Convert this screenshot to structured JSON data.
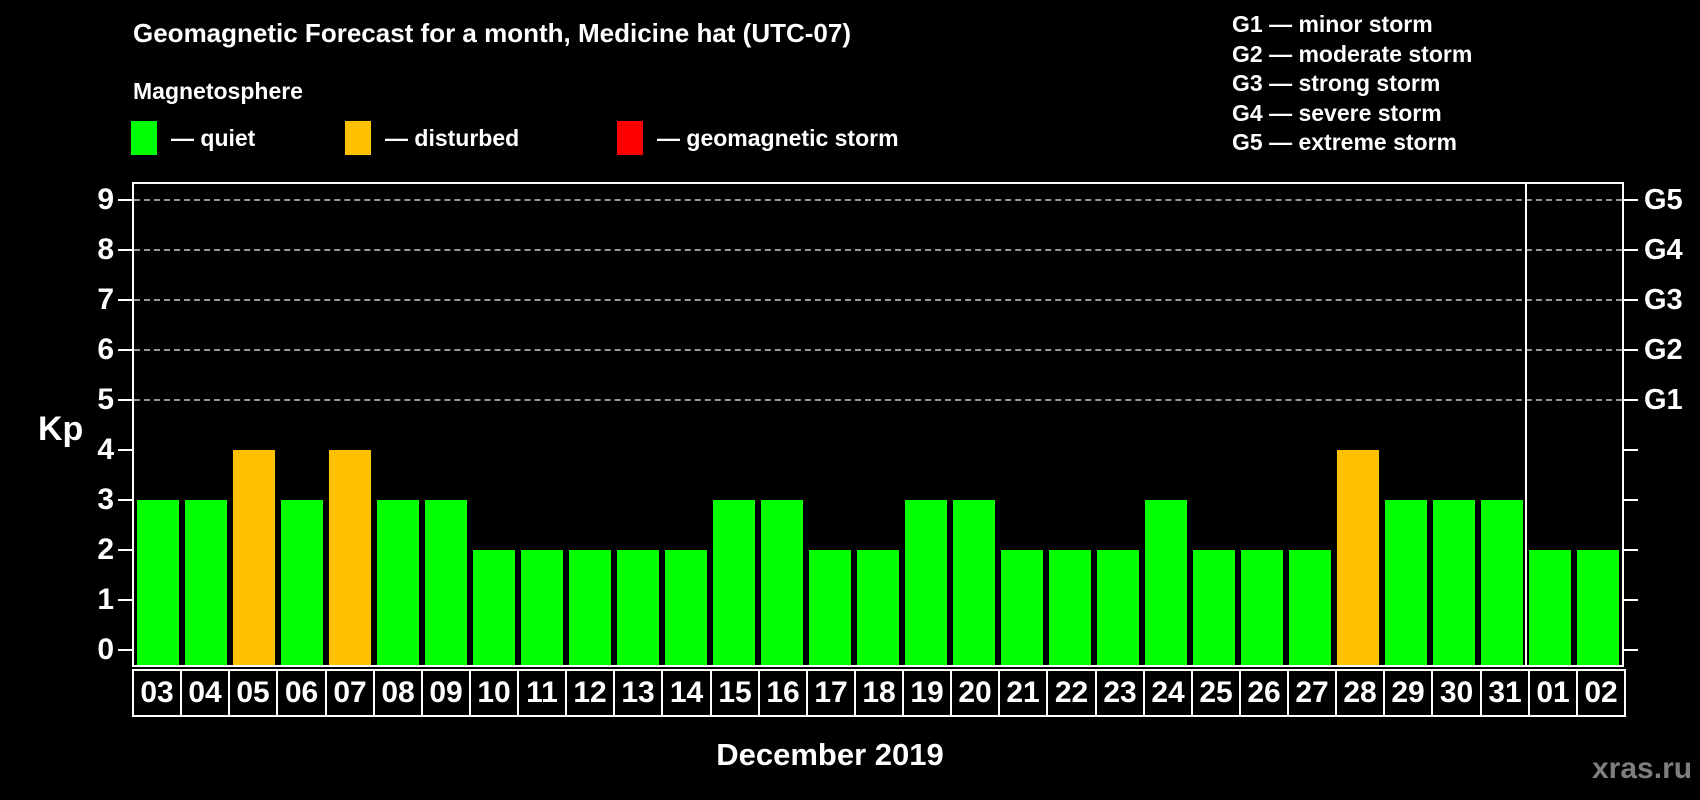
{
  "title": "Geomagnetic Forecast for a month, Medicine hat (UTC-07)",
  "subtitle": "Magnetosphere",
  "legend": {
    "items": [
      {
        "key": "quiet",
        "label": "— quiet",
        "color": "#00ff00"
      },
      {
        "key": "disturbed",
        "label": "— disturbed",
        "color": "#ffc000"
      },
      {
        "key": "storm",
        "label": "— geomagnetic storm",
        "color": "#ff0000"
      }
    ]
  },
  "g_scale_legend": {
    "items": [
      "G1 — minor storm",
      "G2 — moderate storm",
      "G3 — strong storm",
      "G4 — severe storm",
      "G5 — extreme storm"
    ]
  },
  "watermark": "xras.ru",
  "chart_data": {
    "type": "bar",
    "title": "Geomagnetic Forecast for a month, Medicine hat (UTC-07)",
    "xlabel": "December 2019",
    "ylabel": "Kp",
    "ylim": [
      0,
      9.4
    ],
    "yticks": [
      0,
      1,
      2,
      3,
      4,
      5,
      6,
      7,
      8,
      9
    ],
    "gridlines_at": [
      5,
      6,
      7,
      8,
      9
    ],
    "grid_style": "dashed horizontal lines at storm levels only",
    "legend_position": "top-left",
    "right_axis_labels": [
      {
        "label": "G1",
        "kp": 5
      },
      {
        "label": "G2",
        "kp": 6
      },
      {
        "label": "G3",
        "kp": 7
      },
      {
        "label": "G4",
        "kp": 8
      },
      {
        "label": "G5",
        "kp": 9
      }
    ],
    "categories": [
      "03",
      "04",
      "05",
      "06",
      "07",
      "08",
      "09",
      "10",
      "11",
      "12",
      "13",
      "14",
      "15",
      "16",
      "17",
      "18",
      "19",
      "20",
      "21",
      "22",
      "23",
      "24",
      "25",
      "26",
      "27",
      "28",
      "29",
      "30",
      "31",
      "01",
      "02"
    ],
    "values": [
      3,
      3,
      4,
      3,
      4,
      3,
      3,
      2,
      2,
      2,
      2,
      2,
      3,
      3,
      2,
      2,
      3,
      3,
      2,
      2,
      2,
      3,
      2,
      2,
      2,
      4,
      3,
      3,
      3,
      2,
      2
    ],
    "states": [
      "quiet",
      "quiet",
      "disturbed",
      "quiet",
      "disturbed",
      "quiet",
      "quiet",
      "quiet",
      "quiet",
      "quiet",
      "quiet",
      "quiet",
      "quiet",
      "quiet",
      "quiet",
      "quiet",
      "quiet",
      "quiet",
      "quiet",
      "quiet",
      "quiet",
      "quiet",
      "quiet",
      "quiet",
      "quiet",
      "disturbed",
      "quiet",
      "quiet",
      "quiet",
      "quiet",
      "quiet"
    ],
    "state_colors": {
      "quiet": "#00ff00",
      "disturbed": "#ffc000",
      "storm": "#ff0000"
    },
    "month_separator_after_category": "31"
  }
}
